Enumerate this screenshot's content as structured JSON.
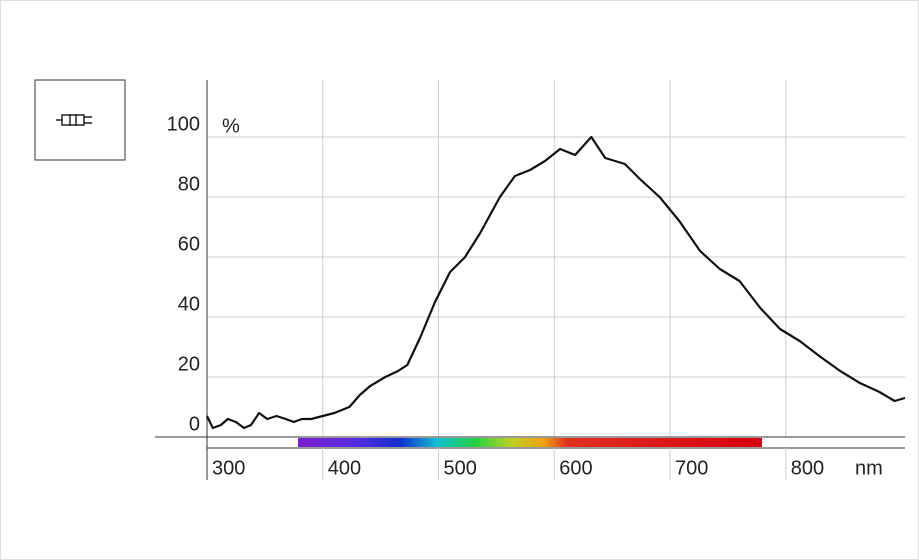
{
  "chart_data": {
    "type": "line",
    "y_unit": "%",
    "x_unit": "nm",
    "x": [
      300,
      305,
      312,
      318,
      325,
      332,
      338,
      345,
      352,
      360,
      368,
      375,
      382,
      390,
      400,
      410,
      423,
      432,
      441,
      454,
      465,
      473,
      484,
      497,
      510,
      523,
      536,
      553,
      566,
      579,
      592,
      605,
      618,
      632,
      644,
      661,
      674,
      691,
      708,
      726,
      743,
      760,
      778,
      795,
      812,
      829,
      847,
      864,
      881,
      894,
      903
    ],
    "series": [
      {
        "name": "spectrum",
        "color": "#111111",
        "values": [
          7,
          3,
          4,
          6,
          5,
          3,
          4,
          8,
          6,
          7,
          6,
          5,
          6,
          6,
          7,
          8,
          10,
          14,
          17,
          20,
          22,
          24,
          33,
          45,
          55,
          60,
          68,
          80,
          87,
          89,
          92,
          96,
          94,
          100,
          93,
          91,
          86,
          80,
          72,
          62,
          56,
          52,
          43,
          36,
          32,
          27,
          22,
          18,
          15,
          12,
          13
        ]
      }
    ],
    "xlim": [
      300,
      903
    ],
    "ylim": [
      0,
      119
    ],
    "xticks": [
      300,
      400,
      500,
      600,
      700,
      800
    ],
    "yticks": [
      0,
      20,
      40,
      60,
      80,
      100
    ],
    "grid": true
  }
}
